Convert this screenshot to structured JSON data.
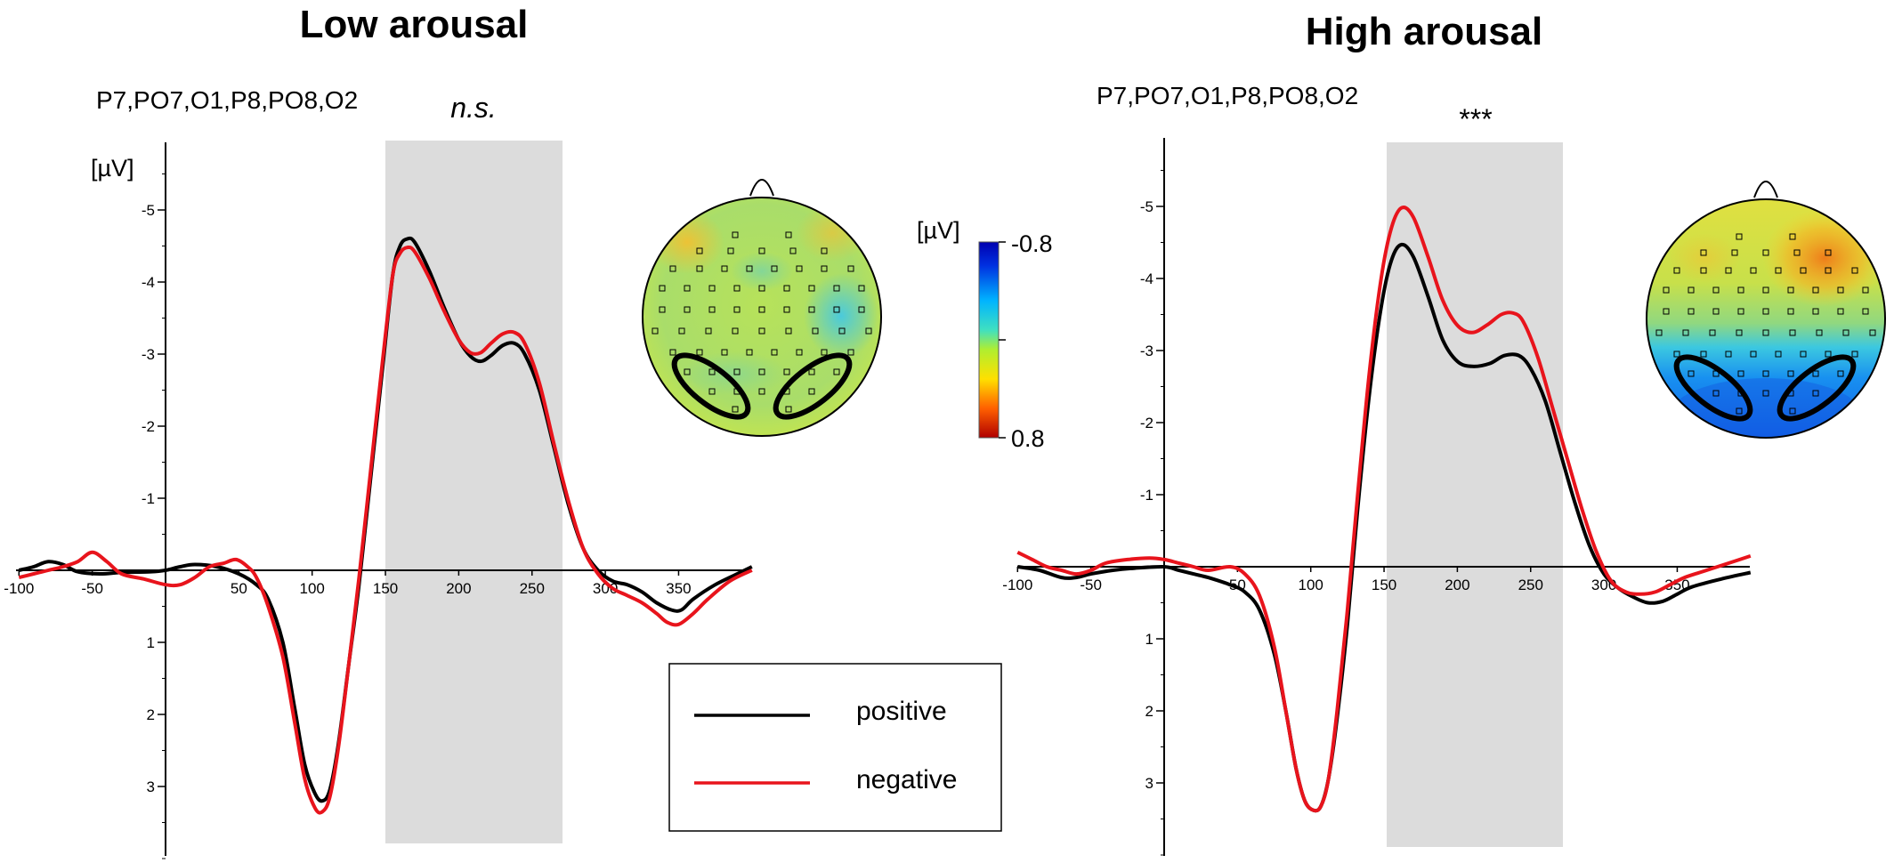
{
  "chart_data": [
    {
      "type": "line",
      "title": "Low arousal",
      "channels": "P7,PO7,O1,P8,PO8,O2",
      "significance": "n.s.",
      "ylabel": "[µV]",
      "y_inverted": true,
      "xlim": [
        -100,
        400
      ],
      "ylim": [
        -5.5,
        4
      ],
      "x_ticks": [
        -100,
        -50,
        50,
        100,
        150,
        200,
        250,
        300,
        350
      ],
      "y_ticks": [
        -5,
        -4,
        -3,
        -2,
        -1,
        1,
        2,
        3
      ],
      "shaded_window": [
        150,
        270
      ],
      "series": [
        {
          "name": "positive",
          "color": "#000000",
          "points": [
            [
              -100,
              0
            ],
            [
              -90,
              -0.05
            ],
            [
              -80,
              -0.12
            ],
            [
              -70,
              -0.08
            ],
            [
              -60,
              0.02
            ],
            [
              -45,
              0.05
            ],
            [
              -30,
              0.03
            ],
            [
              -10,
              0.02
            ],
            [
              0,
              0
            ],
            [
              10,
              -0.05
            ],
            [
              20,
              -0.08
            ],
            [
              35,
              -0.05
            ],
            [
              50,
              0.05
            ],
            [
              62,
              0.2
            ],
            [
              70,
              0.4
            ],
            [
              80,
              1.0
            ],
            [
              88,
              1.9
            ],
            [
              95,
              2.7
            ],
            [
              102,
              3.1
            ],
            [
              107,
              3.2
            ],
            [
              112,
              3.05
            ],
            [
              118,
              2.4
            ],
            [
              125,
              1.3
            ],
            [
              132,
              0.2
            ],
            [
              140,
              -1.3
            ],
            [
              148,
              -2.8
            ],
            [
              155,
              -4.1
            ],
            [
              160,
              -4.5
            ],
            [
              165,
              -4.6
            ],
            [
              170,
              -4.55
            ],
            [
              180,
              -4.15
            ],
            [
              190,
              -3.65
            ],
            [
              200,
              -3.2
            ],
            [
              208,
              -2.97
            ],
            [
              215,
              -2.9
            ],
            [
              222,
              -2.98
            ],
            [
              230,
              -3.12
            ],
            [
              238,
              -3.15
            ],
            [
              245,
              -3.0
            ],
            [
              255,
              -2.5
            ],
            [
              265,
              -1.7
            ],
            [
              275,
              -0.9
            ],
            [
              285,
              -0.3
            ],
            [
              295,
              0.0
            ],
            [
              305,
              0.15
            ],
            [
              315,
              0.2
            ],
            [
              325,
              0.3
            ],
            [
              335,
              0.45
            ],
            [
              345,
              0.55
            ],
            [
              352,
              0.55
            ],
            [
              360,
              0.4
            ],
            [
              375,
              0.2
            ],
            [
              390,
              0.05
            ],
            [
              400,
              -0.05
            ]
          ]
        },
        {
          "name": "negative",
          "color": "#e8141c",
          "points": [
            [
              -100,
              0.1
            ],
            [
              -90,
              0.05
            ],
            [
              -80,
              0.0
            ],
            [
              -70,
              -0.05
            ],
            [
              -60,
              -0.12
            ],
            [
              -50,
              -0.25
            ],
            [
              -40,
              -0.12
            ],
            [
              -30,
              0.05
            ],
            [
              -15,
              0.12
            ],
            [
              0,
              0.2
            ],
            [
              10,
              0.2
            ],
            [
              20,
              0.1
            ],
            [
              30,
              -0.05
            ],
            [
              40,
              -0.1
            ],
            [
              48,
              -0.15
            ],
            [
              56,
              -0.05
            ],
            [
              62,
              0.1
            ],
            [
              70,
              0.5
            ],
            [
              80,
              1.2
            ],
            [
              88,
              2.1
            ],
            [
              95,
              2.9
            ],
            [
              102,
              3.3
            ],
            [
              107,
              3.35
            ],
            [
              112,
              3.15
            ],
            [
              118,
              2.45
            ],
            [
              125,
              1.3
            ],
            [
              132,
              0.1
            ],
            [
              140,
              -1.4
            ],
            [
              148,
              -2.9
            ],
            [
              155,
              -4.1
            ],
            [
              160,
              -4.4
            ],
            [
              165,
              -4.48
            ],
            [
              170,
              -4.42
            ],
            [
              180,
              -4.05
            ],
            [
              190,
              -3.6
            ],
            [
              200,
              -3.2
            ],
            [
              208,
              -3.02
            ],
            [
              215,
              -3.02
            ],
            [
              222,
              -3.15
            ],
            [
              230,
              -3.28
            ],
            [
              238,
              -3.3
            ],
            [
              245,
              -3.15
            ],
            [
              255,
              -2.6
            ],
            [
              265,
              -1.75
            ],
            [
              275,
              -0.95
            ],
            [
              285,
              -0.3
            ],
            [
              295,
              0.05
            ],
            [
              305,
              0.25
            ],
            [
              315,
              0.35
            ],
            [
              325,
              0.45
            ],
            [
              335,
              0.6
            ],
            [
              342,
              0.72
            ],
            [
              350,
              0.75
            ],
            [
              360,
              0.6
            ],
            [
              370,
              0.4
            ],
            [
              385,
              0.15
            ],
            [
              400,
              0.0
            ]
          ]
        }
      ]
    },
    {
      "type": "line",
      "title": "High arousal",
      "channels": "P7,PO7,O1,P8,PO8,O2",
      "significance": "***",
      "y_inverted": true,
      "xlim": [
        -100,
        400
      ],
      "ylim": [
        -5.5,
        4
      ],
      "x_ticks": [
        -100,
        -50,
        50,
        100,
        150,
        200,
        250,
        300,
        350
      ],
      "y_ticks": [
        -5,
        -4,
        -3,
        -2,
        -1,
        1,
        2,
        3
      ],
      "shaded_window": [
        150,
        270
      ],
      "series": [
        {
          "name": "positive",
          "color": "#000000",
          "points": [
            [
              -100,
              0
            ],
            [
              -85,
              0.05
            ],
            [
              -70,
              0.15
            ],
            [
              -60,
              0.15
            ],
            [
              -50,
              0.1
            ],
            [
              -35,
              0.05
            ],
            [
              -20,
              0.02
            ],
            [
              0,
              0
            ],
            [
              10,
              0.05
            ],
            [
              20,
              0.1
            ],
            [
              30,
              0.15
            ],
            [
              45,
              0.25
            ],
            [
              55,
              0.35
            ],
            [
              65,
              0.6
            ],
            [
              75,
              1.2
            ],
            [
              83,
              2.0
            ],
            [
              90,
              2.8
            ],
            [
              96,
              3.25
            ],
            [
              102,
              3.38
            ],
            [
              107,
              3.32
            ],
            [
              112,
              2.95
            ],
            [
              118,
              2.1
            ],
            [
              125,
              0.8
            ],
            [
              132,
              -0.8
            ],
            [
              140,
              -2.4
            ],
            [
              148,
              -3.6
            ],
            [
              155,
              -4.25
            ],
            [
              162,
              -4.47
            ],
            [
              170,
              -4.3
            ],
            [
              180,
              -3.75
            ],
            [
              190,
              -3.15
            ],
            [
              200,
              -2.85
            ],
            [
              210,
              -2.78
            ],
            [
              222,
              -2.82
            ],
            [
              232,
              -2.93
            ],
            [
              242,
              -2.93
            ],
            [
              250,
              -2.75
            ],
            [
              260,
              -2.3
            ],
            [
              270,
              -1.6
            ],
            [
              280,
              -0.9
            ],
            [
              290,
              -0.3
            ],
            [
              300,
              0.1
            ],
            [
              310,
              0.3
            ],
            [
              320,
              0.42
            ],
            [
              330,
              0.5
            ],
            [
              340,
              0.48
            ],
            [
              350,
              0.38
            ],
            [
              360,
              0.28
            ],
            [
              380,
              0.17
            ],
            [
              400,
              0.08
            ]
          ]
        },
        {
          "name": "negative",
          "color": "#e8141c",
          "points": [
            [
              -100,
              -0.2
            ],
            [
              -90,
              -0.1
            ],
            [
              -80,
              0.0
            ],
            [
              -70,
              0.05
            ],
            [
              -60,
              0.1
            ],
            [
              -50,
              0.05
            ],
            [
              -40,
              -0.05
            ],
            [
              -25,
              -0.1
            ],
            [
              -10,
              -0.12
            ],
            [
              0,
              -0.1
            ],
            [
              10,
              -0.05
            ],
            [
              20,
              0.0
            ],
            [
              30,
              0.05
            ],
            [
              45,
              0.0
            ],
            [
              55,
              0.1
            ],
            [
              65,
              0.4
            ],
            [
              75,
              1.1
            ],
            [
              83,
              2.0
            ],
            [
              90,
              2.8
            ],
            [
              96,
              3.25
            ],
            [
              102,
              3.38
            ],
            [
              107,
              3.32
            ],
            [
              112,
              2.95
            ],
            [
              118,
              2.0
            ],
            [
              125,
              0.6
            ],
            [
              132,
              -1.0
            ],
            [
              140,
              -2.7
            ],
            [
              148,
              -4.0
            ],
            [
              155,
              -4.7
            ],
            [
              162,
              -4.98
            ],
            [
              170,
              -4.85
            ],
            [
              180,
              -4.3
            ],
            [
              190,
              -3.7
            ],
            [
              200,
              -3.35
            ],
            [
              210,
              -3.25
            ],
            [
              220,
              -3.35
            ],
            [
              230,
              -3.5
            ],
            [
              238,
              -3.52
            ],
            [
              245,
              -3.4
            ],
            [
              255,
              -2.9
            ],
            [
              265,
              -2.2
            ],
            [
              275,
              -1.5
            ],
            [
              285,
              -0.8
            ],
            [
              295,
              -0.2
            ],
            [
              305,
              0.2
            ],
            [
              315,
              0.35
            ],
            [
              325,
              0.38
            ],
            [
              335,
              0.35
            ],
            [
              345,
              0.25
            ],
            [
              355,
              0.15
            ],
            [
              370,
              0.05
            ],
            [
              385,
              -0.05
            ],
            [
              400,
              -0.15
            ]
          ]
        }
      ]
    }
  ],
  "legend": {
    "items": [
      {
        "label": "positive",
        "color": "#000000"
      },
      {
        "label": "negative",
        "color": "#e8141c"
      }
    ]
  },
  "colorbar": {
    "label": "[µV]",
    "top_label": "-0.8",
    "bottom_label": "0.8"
  },
  "colors": {
    "positive": "#000000",
    "negative": "#e8141c",
    "shade": "#dcdcdc"
  }
}
